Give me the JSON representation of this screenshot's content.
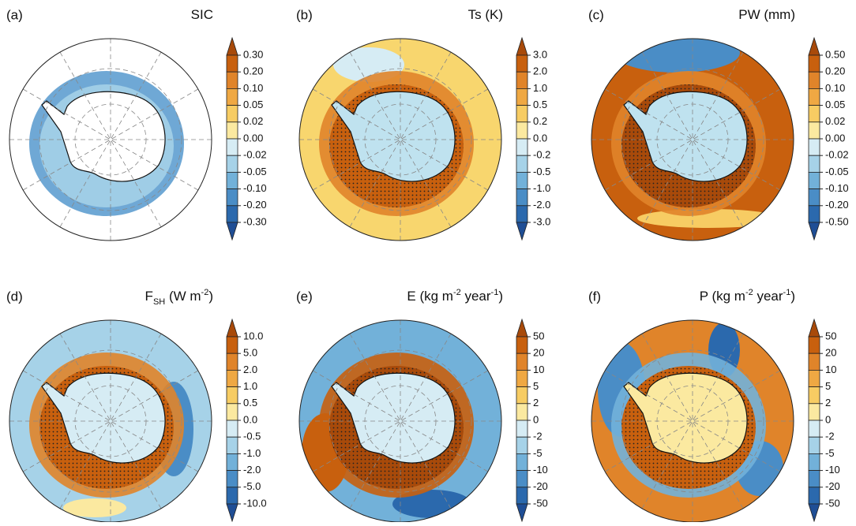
{
  "panels": [
    {
      "label": "(a)",
      "title": [
        {
          "text": "SIC"
        }
      ],
      "colorbar": {
        "ticks": [
          {
            "value": 0.3,
            "label": "0.30"
          },
          {
            "value": 0.2,
            "label": "0.20"
          },
          {
            "value": 0.1,
            "label": "0.10"
          },
          {
            "value": 0.05,
            "label": "0.05"
          },
          {
            "value": 0.02,
            "label": "0.02"
          },
          {
            "value": 0,
            "label": "0.00"
          },
          {
            "value": -0.02,
            "label": "-0.02"
          },
          {
            "value": -0.05,
            "label": "-0.05"
          },
          {
            "value": -0.1,
            "label": "-0.10"
          },
          {
            "value": -0.2,
            "label": "-0.20"
          },
          {
            "value": -0.3,
            "label": "-0.30"
          }
        ]
      }
    },
    {
      "label": "(b)",
      "title": [
        {
          "text": "Ts (K)"
        }
      ],
      "colorbar": {
        "ticks": [
          {
            "value": 3,
            "label": "3.0"
          },
          {
            "value": 2,
            "label": "2.0"
          },
          {
            "value": 1,
            "label": "1.0"
          },
          0.5,
          0.2,
          {
            "value": 0,
            "label": "0.0"
          },
          -0.2,
          -0.5,
          {
            "value": -1,
            "label": "-1.0"
          },
          {
            "value": -2,
            "label": "-2.0"
          },
          {
            "value": -3,
            "label": "-3.0"
          }
        ]
      }
    },
    {
      "label": "(c)",
      "title": [
        {
          "text": "PW (mm)"
        }
      ],
      "colorbar": {
        "ticks": [
          {
            "value": 0.5,
            "label": "0.50"
          },
          {
            "value": 0.2,
            "label": "0.20"
          },
          {
            "value": 0.1,
            "label": "0.10"
          },
          {
            "value": 0.05,
            "label": "0.05"
          },
          {
            "value": 0.02,
            "label": "0.02"
          },
          {
            "value": 0,
            "label": "0.00"
          },
          {
            "value": -0.02,
            "label": "-0.02"
          },
          {
            "value": -0.05,
            "label": "-0.05"
          },
          {
            "value": -0.1,
            "label": "-0.10"
          },
          {
            "value": -0.2,
            "label": "-0.20"
          },
          {
            "value": -0.5,
            "label": "-0.50"
          }
        ]
      }
    },
    {
      "label": "(d)",
      "title": [
        {
          "text": "F"
        },
        {
          "sub": "SH"
        },
        {
          "text": " (W m"
        },
        {
          "sup": "-2"
        },
        {
          "text": ")"
        }
      ],
      "colorbar": {
        "ticks": [
          {
            "value": 10,
            "label": "10.0"
          },
          {
            "value": 5,
            "label": "5.0"
          },
          {
            "value": 2,
            "label": "2.0"
          },
          {
            "value": 1,
            "label": "1.0"
          },
          0.5,
          {
            "value": 0,
            "label": "0.0"
          },
          -0.5,
          {
            "value": -1,
            "label": "-1.0"
          },
          {
            "value": -2,
            "label": "-2.0"
          },
          {
            "value": -5,
            "label": "-5.0"
          },
          {
            "value": -10,
            "label": "-10.0"
          }
        ]
      }
    },
    {
      "label": "(e)",
      "title": [
        {
          "text": "E (kg m"
        },
        {
          "sup": "-2"
        },
        {
          "text": " year"
        },
        {
          "sup": "-1"
        },
        {
          "text": ")"
        }
      ],
      "colorbar": {
        "ticks": [
          50,
          20,
          10,
          5,
          2,
          0,
          -2,
          -5,
          -10,
          -20,
          -50
        ]
      }
    },
    {
      "label": "(f)",
      "title": [
        {
          "text": "P (kg m"
        },
        {
          "sup": "-2"
        },
        {
          "text": " year"
        },
        {
          "sup": "-1"
        },
        {
          "text": ")"
        }
      ],
      "colorbar": {
        "ticks": [
          50,
          20,
          10,
          5,
          2,
          0,
          -2,
          -5,
          -10,
          -20,
          -50
        ]
      }
    }
  ],
  "colorbar_colors": [
    "#a84a0a",
    "#c8600e",
    "#e0842a",
    "#efa843",
    "#f7cc63",
    "#fbe9a0",
    "#d6ecf4",
    "#a6d2e8",
    "#72b1d9",
    "#4a8dc6",
    "#2b69ad",
    "#1f4e95"
  ]
}
